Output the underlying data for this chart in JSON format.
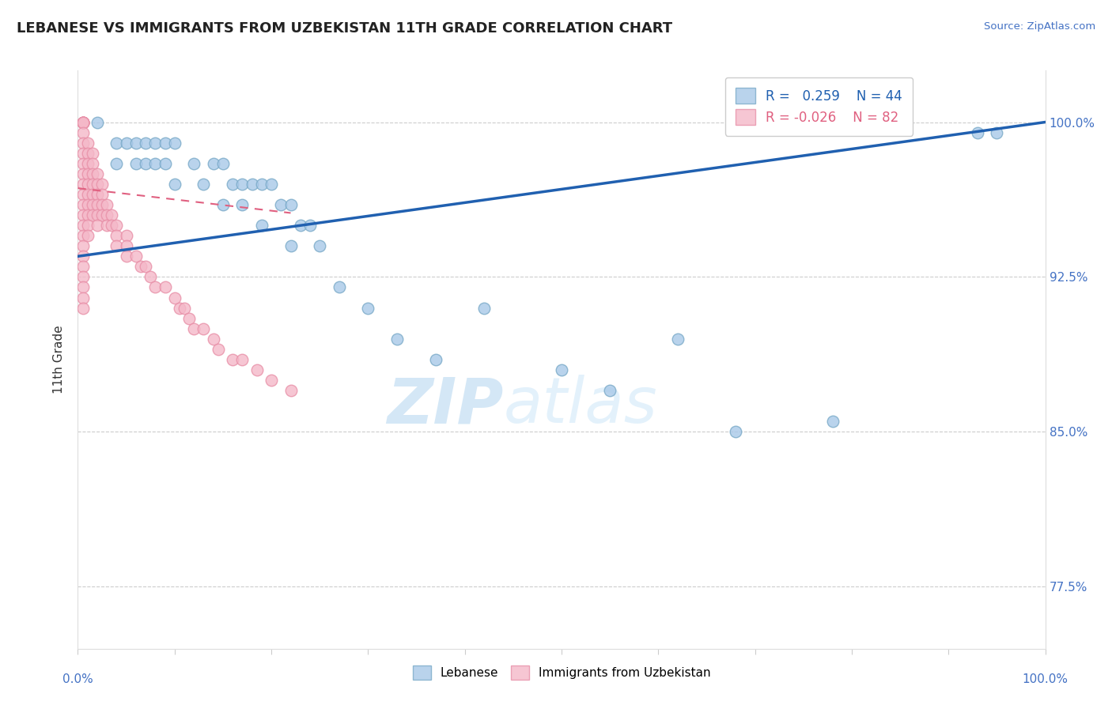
{
  "title": "LEBANESE VS IMMIGRANTS FROM UZBEKISTAN 11TH GRADE CORRELATION CHART",
  "source": "Source: ZipAtlas.com",
  "ylabel": "11th Grade",
  "y_tick_labels": [
    "100.0%",
    "92.5%",
    "85.0%",
    "77.5%"
  ],
  "y_tick_values": [
    1.0,
    0.925,
    0.85,
    0.775
  ],
  "x_min": 0.0,
  "x_max": 1.0,
  "y_min": 0.745,
  "y_max": 1.025,
  "blue_color": "#a8c8e8",
  "pink_color": "#f4b8c8",
  "blue_edge_color": "#7aaac8",
  "pink_edge_color": "#e890a8",
  "blue_line_color": "#2060b0",
  "pink_line_color": "#e06080",
  "legend_R_blue": "0.259",
  "legend_N_blue": "44",
  "legend_R_pink": "-0.026",
  "legend_N_pink": "82",
  "watermark_zip": "ZIP",
  "watermark_atlas": "atlas",
  "blue_points_x": [
    0.02,
    0.04,
    0.04,
    0.05,
    0.06,
    0.06,
    0.07,
    0.07,
    0.08,
    0.08,
    0.09,
    0.09,
    0.1,
    0.1,
    0.12,
    0.13,
    0.14,
    0.15,
    0.15,
    0.16,
    0.17,
    0.17,
    0.18,
    0.19,
    0.19,
    0.2,
    0.21,
    0.22,
    0.22,
    0.23,
    0.24,
    0.25,
    0.27,
    0.3,
    0.33,
    0.37,
    0.42,
    0.5,
    0.55,
    0.62,
    0.68,
    0.78,
    0.93,
    0.95
  ],
  "blue_points_y": [
    1.0,
    0.99,
    0.98,
    0.99,
    0.99,
    0.98,
    0.99,
    0.98,
    0.99,
    0.98,
    0.99,
    0.98,
    0.99,
    0.97,
    0.98,
    0.97,
    0.98,
    0.98,
    0.96,
    0.97,
    0.97,
    0.96,
    0.97,
    0.97,
    0.95,
    0.97,
    0.96,
    0.96,
    0.94,
    0.95,
    0.95,
    0.94,
    0.92,
    0.91,
    0.895,
    0.885,
    0.91,
    0.88,
    0.87,
    0.895,
    0.85,
    0.855,
    0.995,
    0.995
  ],
  "pink_points_x": [
    0.005,
    0.005,
    0.005,
    0.005,
    0.005,
    0.005,
    0.005,
    0.005,
    0.005,
    0.005,
    0.005,
    0.005,
    0.005,
    0.005,
    0.005,
    0.005,
    0.005,
    0.005,
    0.005,
    0.005,
    0.005,
    0.005,
    0.005,
    0.005,
    0.005,
    0.01,
    0.01,
    0.01,
    0.01,
    0.01,
    0.01,
    0.01,
    0.01,
    0.01,
    0.01,
    0.015,
    0.015,
    0.015,
    0.015,
    0.015,
    0.015,
    0.015,
    0.02,
    0.02,
    0.02,
    0.02,
    0.02,
    0.02,
    0.025,
    0.025,
    0.025,
    0.025,
    0.03,
    0.03,
    0.03,
    0.035,
    0.035,
    0.04,
    0.04,
    0.04,
    0.05,
    0.05,
    0.05,
    0.06,
    0.065,
    0.07,
    0.075,
    0.08,
    0.09,
    0.1,
    0.105,
    0.11,
    0.115,
    0.12,
    0.13,
    0.14,
    0.145,
    0.16,
    0.17,
    0.185,
    0.2,
    0.22
  ],
  "pink_points_y": [
    1.0,
    1.0,
    1.0,
    1.0,
    1.0,
    1.0,
    1.0,
    0.995,
    0.99,
    0.985,
    0.98,
    0.975,
    0.97,
    0.965,
    0.96,
    0.955,
    0.95,
    0.945,
    0.94,
    0.935,
    0.93,
    0.925,
    0.92,
    0.915,
    0.91,
    0.99,
    0.985,
    0.98,
    0.975,
    0.97,
    0.965,
    0.96,
    0.955,
    0.95,
    0.945,
    0.985,
    0.98,
    0.975,
    0.97,
    0.965,
    0.96,
    0.955,
    0.975,
    0.97,
    0.965,
    0.96,
    0.955,
    0.95,
    0.97,
    0.965,
    0.96,
    0.955,
    0.96,
    0.955,
    0.95,
    0.955,
    0.95,
    0.95,
    0.945,
    0.94,
    0.945,
    0.94,
    0.935,
    0.935,
    0.93,
    0.93,
    0.925,
    0.92,
    0.92,
    0.915,
    0.91,
    0.91,
    0.905,
    0.9,
    0.9,
    0.895,
    0.89,
    0.885,
    0.885,
    0.88,
    0.875,
    0.87
  ],
  "blue_trend_x": [
    0.0,
    1.0
  ],
  "blue_trend_y": [
    0.935,
    1.0
  ],
  "pink_trend_x": [
    0.0,
    0.22
  ],
  "pink_trend_y": [
    0.968,
    0.956
  ]
}
